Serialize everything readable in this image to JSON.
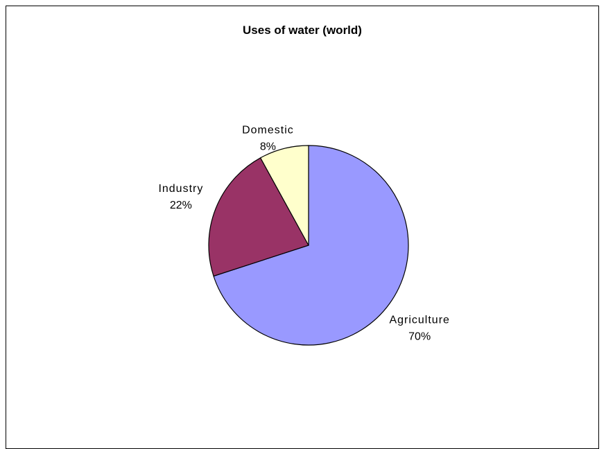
{
  "chart_data": {
    "type": "pie",
    "title": "Uses of water (world)",
    "slices": [
      {
        "label": "Agriculture",
        "value": 70,
        "value_label": "70%",
        "color": "#9999ff"
      },
      {
        "label": "Industry",
        "value": 22,
        "value_label": "22%",
        "color": "#993366"
      },
      {
        "label": "Domestic",
        "value": 8,
        "value_label": "8%",
        "color": "#ffffcc"
      }
    ],
    "start_angle": "12 o'clock",
    "direction": "clockwise",
    "legend": "none",
    "labels": "outside, category and percent"
  }
}
